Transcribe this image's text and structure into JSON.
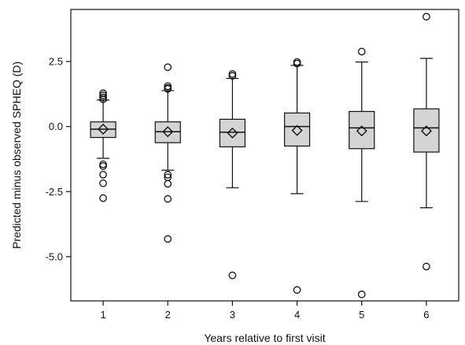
{
  "chart_data": {
    "type": "box",
    "title": "",
    "xlabel": "Years relative to first visit",
    "ylabel": "Predicted minus observed SPHEQ (D)",
    "ylim": [
      -6.7,
      4.5
    ],
    "yticks": [
      "2.5",
      "0.0",
      "-2.5",
      "-5.0"
    ],
    "ytick_values": [
      2.5,
      0.0,
      -2.5,
      -5.0
    ],
    "categories": [
      "1",
      "2",
      "3",
      "4",
      "5",
      "6"
    ],
    "grid": false,
    "legend": "none",
    "box_fill": "#d4d4d4",
    "line_color": "#111111",
    "boxes": [
      {
        "category": "1",
        "q1": -0.42,
        "median": -0.1,
        "q3": 0.18,
        "whisker_low": -1.22,
        "whisker_high": 1.02,
        "mean": -0.1,
        "outliers": [
          1.05,
          1.12,
          1.2,
          1.28,
          -1.45,
          -1.52,
          -1.85,
          -2.18,
          -2.75
        ]
      },
      {
        "category": "2",
        "q1": -0.62,
        "median": -0.2,
        "q3": 0.18,
        "whisker_low": -1.68,
        "whisker_high": 1.38,
        "mean": -0.2,
        "outliers": [
          2.28,
          1.55,
          1.48,
          1.45,
          -1.85,
          -1.95,
          -2.2,
          -2.78,
          -4.32
        ]
      },
      {
        "category": "3",
        "q1": -0.78,
        "median": -0.22,
        "q3": 0.28,
        "whisker_low": -2.35,
        "whisker_high": 1.85,
        "mean": -0.25,
        "outliers": [
          2.02,
          1.95,
          -5.72
        ]
      },
      {
        "category": "4",
        "q1": -0.75,
        "median": 0.0,
        "q3": 0.52,
        "whisker_low": -2.58,
        "whisker_high": 2.35,
        "mean": -0.15,
        "outliers": [
          2.48,
          2.42,
          -6.28
        ]
      },
      {
        "category": "5",
        "q1": -0.85,
        "median": -0.05,
        "q3": 0.58,
        "whisker_low": -2.88,
        "whisker_high": 2.48,
        "mean": -0.17,
        "outliers": [
          2.88,
          -6.45
        ]
      },
      {
        "category": "6",
        "q1": -0.98,
        "median": -0.05,
        "q3": 0.68,
        "whisker_low": -3.12,
        "whisker_high": 2.62,
        "mean": -0.17,
        "outliers": [
          4.22,
          -5.38
        ]
      }
    ]
  }
}
